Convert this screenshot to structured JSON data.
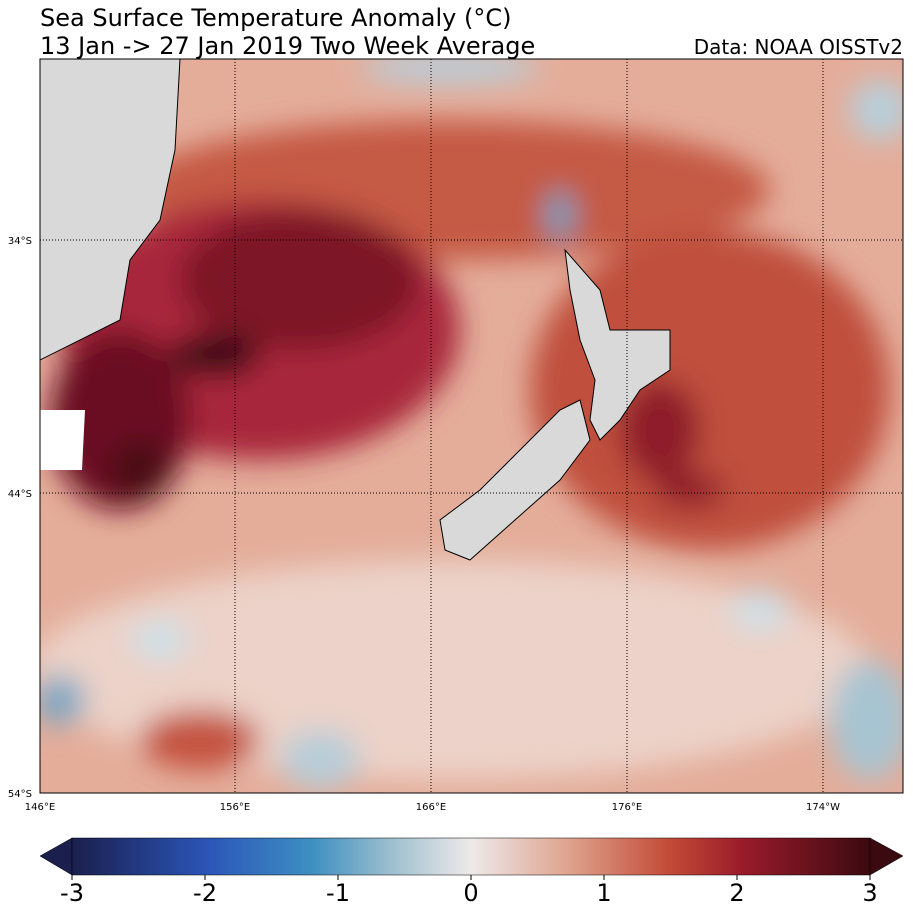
{
  "title": "Sea Surface Temperature Anomaly (°C)",
  "subtitle": "13 Jan -> 27 Jan 2019 Two Week Average",
  "source": "Data: NOAA OISSTv2",
  "map": {
    "lat_labels": [
      "34°S",
      "44°S",
      "54°S"
    ],
    "lon_labels": [
      "146°E",
      "156°E",
      "166°E",
      "176°E",
      "174°W"
    ]
  },
  "colorbar": {
    "range": [
      -3,
      3
    ],
    "ticks": [
      -3,
      -2,
      -1,
      0,
      1,
      2,
      3
    ]
  }
}
